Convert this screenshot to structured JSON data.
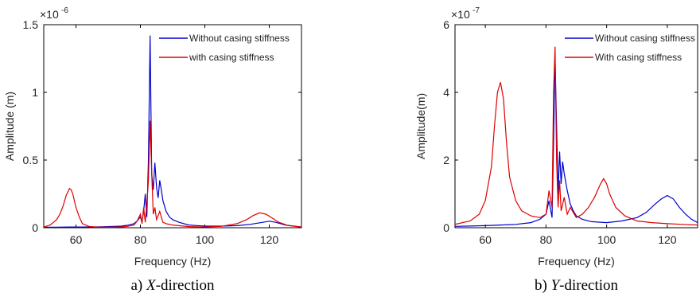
{
  "chart_data": [
    {
      "type": "line",
      "caption_prefix": "a) ",
      "caption_var": "X",
      "caption_suffix": "-direction",
      "xlabel": "Frequency (Hz)",
      "ylabel": "Amplitude (m)",
      "y_multiplier_base": "×10",
      "y_multiplier_exp": "-6",
      "xlim": [
        50,
        130
      ],
      "ylim": [
        0,
        1.5
      ],
      "xticks": [
        60,
        80,
        100,
        120
      ],
      "xtick_labels": [
        "60",
        "80",
        "100",
        "120"
      ],
      "yticks": [
        0,
        0.5,
        1,
        1.5
      ],
      "ytick_labels": [
        "0",
        "0.5",
        "1",
        "1.5"
      ],
      "legend_position": "top-right",
      "series": [
        {
          "name": "Without casing stiffness",
          "color": "#0000cc",
          "x": [
            50,
            54,
            58,
            62,
            66,
            70,
            74,
            76,
            78,
            79,
            80,
            80.5,
            81,
            81.5,
            82,
            82.5,
            83,
            83.5,
            84,
            84.5,
            85,
            85.5,
            86,
            86.5,
            87,
            88,
            89,
            90,
            92,
            95,
            100,
            105,
            110,
            114,
            118,
            120,
            122,
            125,
            130
          ],
          "y": [
            0.004,
            0.004,
            0.005,
            0.005,
            0.006,
            0.008,
            0.012,
            0.018,
            0.03,
            0.05,
            0.08,
            0.04,
            0.12,
            0.25,
            0.08,
            0.5,
            1.42,
            0.4,
            0.28,
            0.48,
            0.3,
            0.22,
            0.35,
            0.28,
            0.2,
            0.12,
            0.08,
            0.06,
            0.04,
            0.02,
            0.012,
            0.012,
            0.015,
            0.025,
            0.04,
            0.048,
            0.04,
            0.02,
            0.005
          ]
        },
        {
          "name": "with casing stiffness",
          "color": "#e00000",
          "x": [
            50,
            52,
            54,
            55,
            56,
            57,
            58,
            58.5,
            59,
            60,
            61,
            62,
            64,
            66,
            70,
            74,
            76,
            78,
            79,
            80,
            80.5,
            81,
            81.5,
            82,
            82.5,
            83,
            83.5,
            84,
            84.5,
            85,
            86,
            87,
            88,
            90,
            95,
            100,
            105,
            110,
            113,
            115,
            117,
            119,
            121,
            123,
            126,
            130
          ],
          "y": [
            0.005,
            0.02,
            0.06,
            0.1,
            0.16,
            0.24,
            0.29,
            0.28,
            0.25,
            0.15,
            0.08,
            0.03,
            0.01,
            0.005,
            0.004,
            0.006,
            0.01,
            0.02,
            0.05,
            0.1,
            0.03,
            0.15,
            0.04,
            0.18,
            0.35,
            0.79,
            0.4,
            0.1,
            0.15,
            0.06,
            0.12,
            0.04,
            0.03,
            0.02,
            0.008,
            0.006,
            0.01,
            0.03,
            0.06,
            0.09,
            0.11,
            0.1,
            0.07,
            0.04,
            0.015,
            0.005
          ]
        }
      ]
    },
    {
      "type": "line",
      "caption_prefix": "b) ",
      "caption_var": "Y",
      "caption_suffix": "-direction",
      "xlabel": "Frequency (Hz)",
      "ylabel": "Amplitude(m)",
      "y_multiplier_base": "×10",
      "y_multiplier_exp": "-7",
      "xlim": [
        50,
        130
      ],
      "ylim": [
        0,
        6
      ],
      "xticks": [
        60,
        80,
        100,
        120
      ],
      "xtick_labels": [
        "60",
        "80",
        "100",
        "120"
      ],
      "yticks": [
        0,
        2,
        4,
        6
      ],
      "ytick_labels": [
        "0",
        "2",
        "4",
        "6"
      ],
      "legend_position": "top-right",
      "series": [
        {
          "name": "Without casing stiffness",
          "color": "#0000cc",
          "x": [
            50,
            55,
            60,
            65,
            70,
            75,
            78,
            80,
            81,
            82,
            82.5,
            83,
            83.5,
            84,
            84.5,
            85,
            85.5,
            86,
            87,
            88,
            89,
            90,
            92,
            95,
            100,
            105,
            110,
            113,
            116,
            118,
            120,
            122,
            124,
            126,
            128,
            130
          ],
          "y": [
            0.04,
            0.05,
            0.06,
            0.08,
            0.1,
            0.15,
            0.25,
            0.4,
            0.8,
            0.3,
            2.5,
            5.0,
            3.0,
            1.0,
            2.25,
            1.3,
            1.95,
            1.6,
            1.1,
            0.7,
            0.5,
            0.35,
            0.25,
            0.18,
            0.15,
            0.2,
            0.3,
            0.45,
            0.7,
            0.85,
            0.95,
            0.85,
            0.6,
            0.4,
            0.25,
            0.15
          ]
        },
        {
          "name": "With casing stiffness",
          "color": "#e00000",
          "x": [
            50,
            55,
            58,
            60,
            62,
            63,
            64,
            65,
            66,
            67,
            68,
            70,
            72,
            75,
            78,
            80,
            81,
            82,
            82.5,
            83,
            83.5,
            84,
            84.5,
            85,
            86,
            87,
            88,
            90,
            92,
            94,
            96,
            98,
            99,
            100,
            101,
            103,
            106,
            110,
            115,
            120,
            125,
            130
          ],
          "y": [
            0.1,
            0.2,
            0.4,
            0.8,
            1.8,
            3.0,
            4.0,
            4.3,
            3.8,
            2.5,
            1.5,
            0.8,
            0.5,
            0.35,
            0.3,
            0.4,
            1.1,
            0.6,
            4.0,
            5.35,
            2.0,
            0.6,
            1.4,
            0.5,
            0.9,
            0.4,
            0.6,
            0.3,
            0.4,
            0.6,
            0.9,
            1.3,
            1.45,
            1.3,
            1.0,
            0.6,
            0.35,
            0.2,
            0.15,
            0.12,
            0.1,
            0.08
          ]
        }
      ]
    }
  ]
}
